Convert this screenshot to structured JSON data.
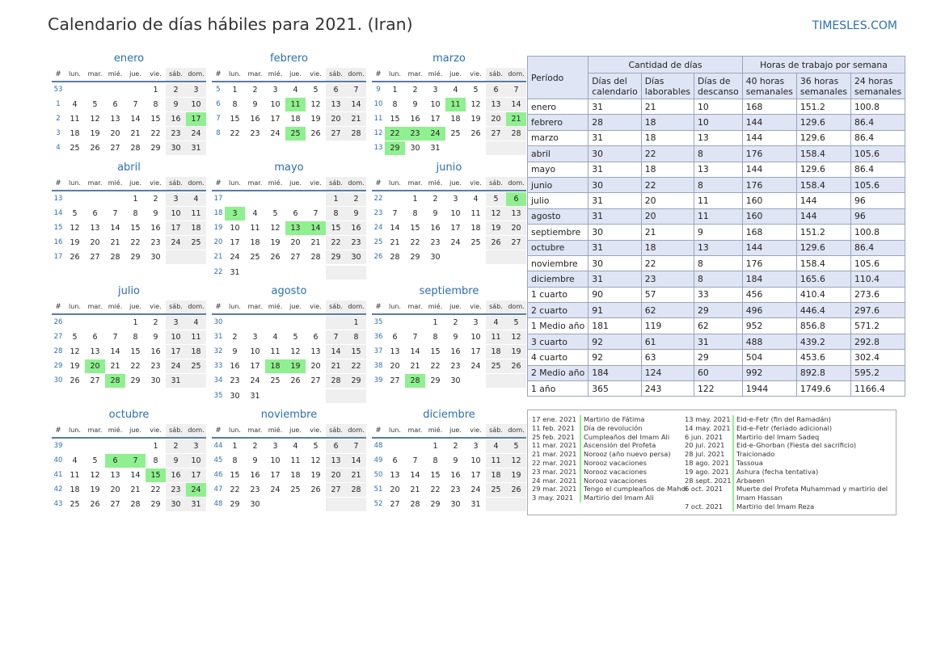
{
  "header": {
    "title": "Calendario de días hábiles para 2021. (Iran)",
    "site": "TIMESLES.COM"
  },
  "dow": [
    "#",
    "lun.",
    "mar.",
    "mié.",
    "jue.",
    "vie.",
    "sáb.",
    "dom."
  ],
  "months": [
    {
      "name": "enero",
      "weeks": [
        [
          53,
          null,
          null,
          null,
          null,
          1,
          2,
          3
        ],
        [
          1,
          4,
          5,
          6,
          7,
          8,
          9,
          10
        ],
        [
          2,
          11,
          12,
          13,
          14,
          15,
          16,
          17
        ],
        [
          3,
          18,
          19,
          20,
          21,
          22,
          23,
          24
        ],
        [
          4,
          25,
          26,
          27,
          28,
          29,
          30,
          31
        ]
      ],
      "holidays": [
        17
      ]
    },
    {
      "name": "febrero",
      "weeks": [
        [
          5,
          1,
          2,
          3,
          4,
          5,
          6,
          7
        ],
        [
          6,
          8,
          9,
          10,
          11,
          12,
          13,
          14
        ],
        [
          7,
          15,
          16,
          17,
          18,
          19,
          20,
          21
        ],
        [
          8,
          22,
          23,
          24,
          25,
          26,
          27,
          28
        ]
      ],
      "holidays": [
        11,
        25
      ]
    },
    {
      "name": "marzo",
      "weeks": [
        [
          9,
          1,
          2,
          3,
          4,
          5,
          6,
          7
        ],
        [
          10,
          8,
          9,
          10,
          11,
          12,
          13,
          14
        ],
        [
          11,
          15,
          16,
          17,
          18,
          19,
          20,
          21
        ],
        [
          12,
          22,
          23,
          24,
          25,
          26,
          27,
          28
        ],
        [
          13,
          29,
          30,
          31,
          null,
          null,
          null,
          null
        ]
      ],
      "holidays": [
        11,
        21,
        22,
        23,
        24,
        29
      ]
    },
    {
      "name": "abril",
      "weeks": [
        [
          13,
          null,
          null,
          null,
          1,
          2,
          3,
          4
        ],
        [
          14,
          5,
          6,
          7,
          8,
          9,
          10,
          11
        ],
        [
          15,
          12,
          13,
          14,
          15,
          16,
          17,
          18
        ],
        [
          16,
          19,
          20,
          21,
          22,
          23,
          24,
          25
        ],
        [
          17,
          26,
          27,
          28,
          29,
          30,
          null,
          null
        ]
      ],
      "holidays": []
    },
    {
      "name": "mayo",
      "weeks": [
        [
          17,
          null,
          null,
          null,
          null,
          null,
          1,
          2
        ],
        [
          18,
          3,
          4,
          5,
          6,
          7,
          8,
          9
        ],
        [
          19,
          10,
          11,
          12,
          13,
          14,
          15,
          16
        ],
        [
          20,
          17,
          18,
          19,
          20,
          21,
          22,
          23
        ],
        [
          21,
          24,
          25,
          26,
          27,
          28,
          29,
          30
        ],
        [
          22,
          31,
          null,
          null,
          null,
          null,
          null,
          null
        ]
      ],
      "holidays": [
        3,
        13,
        14
      ]
    },
    {
      "name": "junio",
      "weeks": [
        [
          22,
          null,
          1,
          2,
          3,
          4,
          5,
          6
        ],
        [
          23,
          7,
          8,
          9,
          10,
          11,
          12,
          13
        ],
        [
          24,
          14,
          15,
          16,
          17,
          18,
          19,
          20
        ],
        [
          25,
          21,
          22,
          23,
          24,
          25,
          26,
          27
        ],
        [
          26,
          28,
          29,
          30,
          null,
          null,
          null,
          null
        ]
      ],
      "holidays": [
        6
      ]
    },
    {
      "name": "julio",
      "weeks": [
        [
          26,
          null,
          null,
          null,
          1,
          2,
          3,
          4
        ],
        [
          27,
          5,
          6,
          7,
          8,
          9,
          10,
          11
        ],
        [
          28,
          12,
          13,
          14,
          15,
          16,
          17,
          18
        ],
        [
          29,
          19,
          20,
          21,
          22,
          23,
          24,
          25
        ],
        [
          30,
          26,
          27,
          28,
          29,
          30,
          31,
          null
        ]
      ],
      "holidays": [
        20,
        28
      ]
    },
    {
      "name": "agosto",
      "weeks": [
        [
          30,
          null,
          null,
          null,
          null,
          null,
          null,
          1
        ],
        [
          31,
          2,
          3,
          4,
          5,
          6,
          7,
          8
        ],
        [
          32,
          9,
          10,
          11,
          12,
          13,
          14,
          15
        ],
        [
          33,
          16,
          17,
          18,
          19,
          20,
          21,
          22
        ],
        [
          34,
          23,
          24,
          25,
          26,
          27,
          28,
          29
        ],
        [
          35,
          30,
          31,
          null,
          null,
          null,
          null,
          null
        ]
      ],
      "holidays": [
        18,
        19
      ]
    },
    {
      "name": "septiembre",
      "weeks": [
        [
          35,
          null,
          null,
          1,
          2,
          3,
          4,
          5
        ],
        [
          36,
          6,
          7,
          8,
          9,
          10,
          11,
          12
        ],
        [
          37,
          13,
          14,
          15,
          16,
          17,
          18,
          19
        ],
        [
          38,
          20,
          21,
          22,
          23,
          24,
          25,
          26
        ],
        [
          39,
          27,
          28,
          29,
          30,
          null,
          null,
          null
        ]
      ],
      "holidays": [
        28
      ]
    },
    {
      "name": "octubre",
      "weeks": [
        [
          39,
          null,
          null,
          null,
          null,
          1,
          2,
          3
        ],
        [
          40,
          4,
          5,
          6,
          7,
          8,
          9,
          10
        ],
        [
          41,
          11,
          12,
          13,
          14,
          15,
          16,
          17
        ],
        [
          42,
          18,
          19,
          20,
          21,
          22,
          23,
          24
        ],
        [
          43,
          25,
          26,
          27,
          28,
          29,
          30,
          31
        ]
      ],
      "holidays": [
        6,
        7,
        15,
        24
      ]
    },
    {
      "name": "noviembre",
      "weeks": [
        [
          44,
          1,
          2,
          3,
          4,
          5,
          6,
          7
        ],
        [
          45,
          8,
          9,
          10,
          11,
          12,
          13,
          14
        ],
        [
          46,
          15,
          16,
          17,
          18,
          19,
          20,
          21
        ],
        [
          47,
          22,
          23,
          24,
          25,
          26,
          27,
          28
        ],
        [
          48,
          29,
          30,
          null,
          null,
          null,
          null,
          null
        ]
      ],
      "holidays": []
    },
    {
      "name": "diciembre",
      "weeks": [
        [
          48,
          null,
          null,
          1,
          2,
          3,
          4,
          5
        ],
        [
          49,
          6,
          7,
          8,
          9,
          10,
          11,
          12
        ],
        [
          50,
          13,
          14,
          15,
          16,
          17,
          18,
          19
        ],
        [
          51,
          20,
          21,
          22,
          23,
          24,
          25,
          26
        ],
        [
          52,
          27,
          28,
          29,
          30,
          31,
          null,
          null
        ]
      ],
      "holidays": []
    }
  ],
  "stats": {
    "header": {
      "period": "Período",
      "days_group": "Cantidad de días",
      "hours_group": "Horas de trabajo por semana",
      "cols": [
        "Días del calendario",
        "Días laborables",
        "Días de descanso",
        "40 horas semanales",
        "36 horas semanales",
        "24 horas semanales"
      ]
    },
    "rows": [
      [
        "enero",
        "31",
        "21",
        "10",
        "168",
        "151.2",
        "100.8"
      ],
      [
        "febrero",
        "28",
        "18",
        "10",
        "144",
        "129.6",
        "86.4"
      ],
      [
        "marzo",
        "31",
        "18",
        "13",
        "144",
        "129.6",
        "86.4"
      ],
      [
        "abril",
        "30",
        "22",
        "8",
        "176",
        "158.4",
        "105.6"
      ],
      [
        "mayo",
        "31",
        "18",
        "13",
        "144",
        "129.6",
        "86.4"
      ],
      [
        "junio",
        "30",
        "22",
        "8",
        "176",
        "158.4",
        "105.6"
      ],
      [
        "julio",
        "31",
        "20",
        "11",
        "160",
        "144",
        "96"
      ],
      [
        "agosto",
        "31",
        "20",
        "11",
        "160",
        "144",
        "96"
      ],
      [
        "septiembre",
        "30",
        "21",
        "9",
        "168",
        "151.2",
        "100.8"
      ],
      [
        "octubre",
        "31",
        "18",
        "13",
        "144",
        "129.6",
        "86.4"
      ],
      [
        "noviembre",
        "30",
        "22",
        "8",
        "176",
        "158.4",
        "105.6"
      ],
      [
        "diciembre",
        "31",
        "23",
        "8",
        "184",
        "165.6",
        "110.4"
      ],
      [
        "1 cuarto",
        "90",
        "57",
        "33",
        "456",
        "410.4",
        "273.6"
      ],
      [
        "2 cuarto",
        "91",
        "62",
        "29",
        "496",
        "446.4",
        "297.6"
      ],
      [
        "1 Medio año",
        "181",
        "119",
        "62",
        "952",
        "856.8",
        "571.2"
      ],
      [
        "3 cuarto",
        "92",
        "61",
        "31",
        "488",
        "439.2",
        "292.8"
      ],
      [
        "4 cuarto",
        "92",
        "63",
        "29",
        "504",
        "453.6",
        "302.4"
      ],
      [
        "2 Medio año",
        "184",
        "124",
        "60",
        "992",
        "892.8",
        "595.2"
      ],
      [
        "1 año",
        "365",
        "243",
        "122",
        "1944",
        "1749.6",
        "1166.4"
      ]
    ]
  },
  "holiday_list": {
    "left": [
      {
        "date": "17 ene. 2021",
        "name": "Martirio de Fátima"
      },
      {
        "date": "11 feb. 2021",
        "name": "Día de revolución"
      },
      {
        "date": "25 feb. 2021",
        "name": "Cumpleaños del Imam Ali"
      },
      {
        "date": "11 mar. 2021",
        "name": "Ascensión del Profeta"
      },
      {
        "date": "21 mar. 2021",
        "name": "Norooz (año nuevo persa)"
      },
      {
        "date": "22 mar. 2021",
        "name": "Norooz vacaciones"
      },
      {
        "date": "23 mar. 2021",
        "name": "Norooz vacaciones"
      },
      {
        "date": "24 mar. 2021",
        "name": "Norooz vacaciones"
      },
      {
        "date": "29 mar. 2021",
        "name": "Tengo el cumpleaños de Mahdi"
      },
      {
        "date": "3 may. 2021",
        "name": "Martirio del Imam Ali"
      }
    ],
    "right": [
      {
        "date": "13 may. 2021",
        "name": "Eid-e-Fetr (fin del Ramadán)"
      },
      {
        "date": "14 may. 2021",
        "name": "Eid-e-Fetr (feriado adicional)"
      },
      {
        "date": "6 jun. 2021",
        "name": "Martirio del Imam Sadeq"
      },
      {
        "date": "20 jul. 2021",
        "name": "Eid-e-Ghorban (Fiesta del sacrificio)"
      },
      {
        "date": "28 jul. 2021",
        "name": "Traicionado"
      },
      {
        "date": "18 ago. 2021",
        "name": "Tassoua"
      },
      {
        "date": "19 ago. 2021",
        "name": "Ashura (fecha tentativa)"
      },
      {
        "date": "28 sept. 2021",
        "name": "Arbaeen"
      },
      {
        "date": "6 oct. 2021",
        "name": "Muerte del Profeta Muhammad y martirio del Imam Hassan"
      },
      {
        "date": "7 oct. 2021",
        "name": "Martirio del Imam Reza"
      }
    ]
  }
}
